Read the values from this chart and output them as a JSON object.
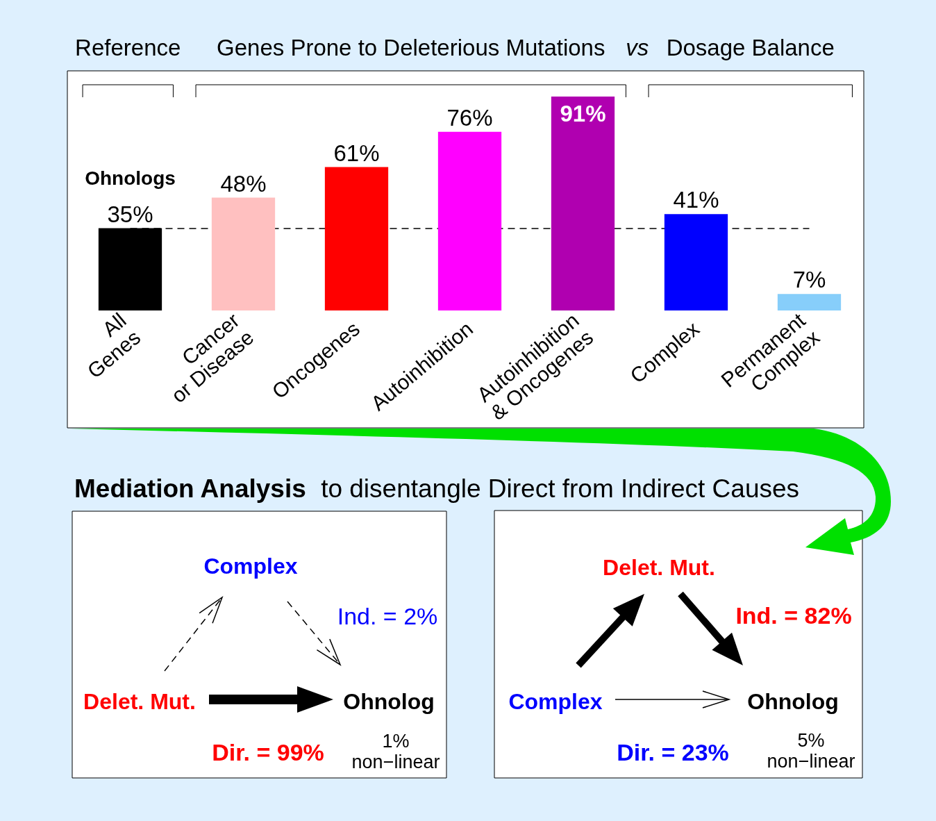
{
  "chart_data": [
    {
      "type": "bar",
      "categories": [
        "All\nGenes",
        "Cancer\nor Disease",
        "Oncogenes",
        "Autoinhibition",
        "Autoinhibition\n& Oncogenes",
        "Complex",
        "Permanent\nComplex"
      ],
      "values": [
        35,
        48,
        61,
        76,
        91,
        41,
        7
      ],
      "colors": [
        "#000000",
        "#ffc0c0",
        "#ff0000",
        "#ff00ff",
        "#b000b0",
        "#0000ff",
        "#87cefa"
      ],
      "value_labels": [
        "35%",
        "48%",
        "61%",
        "76%",
        "91%",
        "41%",
        "7%"
      ],
      "ylabel": "Ohnologs",
      "annotations": [
        "Reference",
        "Genes Prone to Deleterious Mutations",
        "vs",
        "Dosage Balance"
      ],
      "ref_lines": [
        {
          "axis": "y",
          "value": 35,
          "color": "#000000",
          "line_style": "dashed"
        }
      ]
    },
    {
      "type": "other",
      "title": "Mediation Analysis",
      "subtitle": "to disentangle Direct from Indirect Causes",
      "categories": [
        "Delet. Mut.",
        "Complex",
        "Ohnolog"
      ],
      "annotations": [
        "Ind. = 2%",
        "Dir. = 99%",
        "1%\nnon−linear"
      ]
    },
    {
      "type": "other",
      "categories": [
        "Complex",
        "Delet. Mut.",
        "Ohnolog"
      ],
      "annotations": [
        "Ind. = 82%",
        "Dir. = 23%",
        "5%\nnon−linear"
      ]
    }
  ]
}
